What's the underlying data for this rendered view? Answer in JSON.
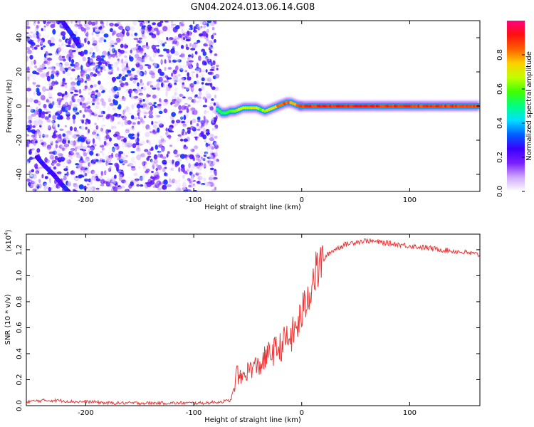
{
  "figure": {
    "title": "GN04.2024.013.06.14.G08"
  },
  "colorbar": {
    "label": "Normalized spectral amplitude",
    "ticks": [
      "0.0",
      "0.2",
      "0.4",
      "0.6",
      "0.8"
    ],
    "tick_values": [
      0.0,
      0.2,
      0.4,
      0.6,
      0.8
    ],
    "colors": [
      "#ffffff",
      "#cfa8ff",
      "#7a1fff",
      "#3a00ff",
      "#0060ff",
      "#00e0ff",
      "#00ff80",
      "#40ff00",
      "#c0ff00",
      "#ffd000",
      "#ff6000",
      "#ff1010",
      "#ff0080"
    ]
  },
  "chart_data": [
    {
      "type": "heatmap",
      "xlabel": "Height of straight line (km)",
      "ylabel": "Frequency (Hz)",
      "xlim": [
        -255,
        165
      ],
      "ylim": [
        -50,
        50
      ],
      "x_ticks": [
        -200,
        -100,
        0,
        100
      ],
      "x_tick_labels": [
        "-200",
        "-100",
        "0",
        "100"
      ],
      "y_ticks": [
        -40,
        -20,
        0,
        20,
        40
      ],
      "y_tick_labels": [
        "-40",
        "-20",
        "0",
        "20",
        "40"
      ],
      "noise_region": {
        "x_start": -255,
        "x_end": -78
      },
      "ridge": {
        "x": [
          -78,
          -74,
          -70,
          -66,
          -62,
          -58,
          -54,
          -50,
          -46,
          -42,
          -38,
          -34,
          -30,
          -26,
          -22,
          -18,
          -14,
          -10,
          -6,
          -2,
          0,
          20,
          40,
          60,
          80,
          100,
          120,
          140,
          165
        ],
        "y": [
          -2,
          -4,
          -4,
          -3,
          -3,
          -2,
          -1,
          -1,
          -1,
          -1,
          -2,
          -3,
          -2,
          -1,
          0,
          1,
          2,
          2,
          1,
          0,
          0,
          0,
          0,
          0,
          0,
          0,
          0,
          0,
          0
        ],
        "amplitude": [
          0.5,
          0.55,
          0.55,
          0.6,
          0.6,
          0.65,
          0.65,
          0.65,
          0.7,
          0.7,
          0.6,
          0.65,
          0.7,
          0.75,
          0.8,
          0.85,
          0.85,
          0.8,
          0.8,
          0.85,
          0.85,
          0.9,
          0.9,
          0.9,
          0.88,
          0.88,
          0.88,
          0.87,
          0.85
        ]
      },
      "aliased_tracks": [
        {
          "x": [
            -222,
            -214,
            -206
          ],
          "y": [
            50,
            43,
            35
          ]
        },
        {
          "x": [
            -245,
            -238,
            -230,
            -222,
            -216
          ],
          "y": [
            -30,
            -35,
            -40,
            -46,
            -50
          ]
        }
      ]
    },
    {
      "type": "line",
      "xlabel": "Height of straight line (km)",
      "ylabel": "SNR (10 * v/v)",
      "y_multiplier": "(x10",
      "y_multiplier_exp": "4",
      "y_multiplier_close": ")",
      "xlim": [
        -255,
        165
      ],
      "ylim": [
        0,
        1.32
      ],
      "x_ticks": [
        -200,
        -100,
        0,
        100
      ],
      "x_tick_labels": [
        "-200",
        "-100",
        "0",
        "100"
      ],
      "y_ticks": [
        0.0,
        0.2,
        0.4,
        0.6,
        0.8,
        1.0,
        1.2
      ],
      "y_tick_labels": [
        "0.0",
        "0.2",
        "0.4",
        "0.6",
        "0.8",
        "1.0",
        "1.2"
      ],
      "series": [
        {
          "color": "#ee3333",
          "x": [
            -255,
            -240,
            -225,
            -210,
            -195,
            -180,
            -165,
            -150,
            -135,
            -120,
            -105,
            -90,
            -75,
            -66,
            -62,
            -60,
            -58,
            -55,
            -50,
            -45,
            -40,
            -35,
            -30,
            -25,
            -20,
            -15,
            -10,
            -5,
            0,
            5,
            10,
            15,
            20,
            25,
            30,
            35,
            40,
            50,
            60,
            70,
            80,
            90,
            100,
            110,
            120,
            130,
            140,
            150,
            165
          ],
          "y": [
            0.03,
            0.04,
            0.04,
            0.03,
            0.03,
            0.02,
            0.02,
            0.02,
            0.02,
            0.02,
            0.02,
            0.02,
            0.03,
            0.04,
            0.15,
            0.28,
            0.2,
            0.22,
            0.27,
            0.3,
            0.3,
            0.35,
            0.4,
            0.42,
            0.45,
            0.5,
            0.52,
            0.6,
            0.7,
            0.82,
            0.97,
            1.05,
            1.12,
            1.17,
            1.2,
            1.22,
            1.24,
            1.26,
            1.27,
            1.26,
            1.25,
            1.24,
            1.23,
            1.22,
            1.21,
            1.2,
            1.19,
            1.18,
            1.16
          ]
        }
      ]
    }
  ]
}
